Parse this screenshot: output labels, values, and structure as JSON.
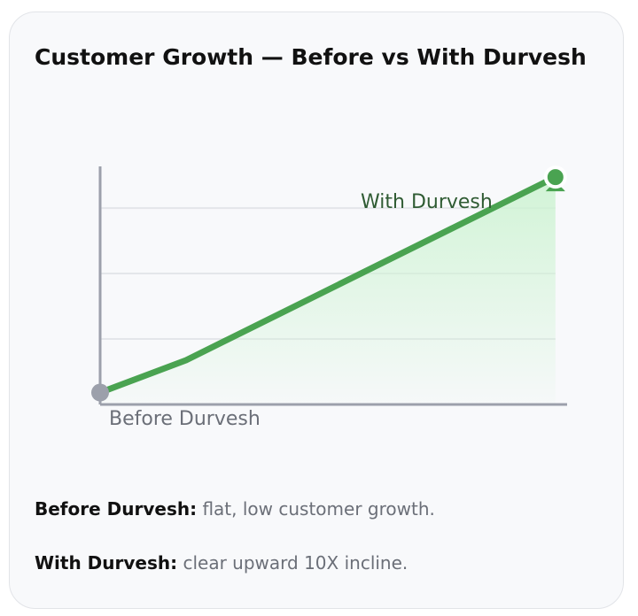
{
  "title": "Customer Growth — Before vs With Durvesh",
  "chart_data": {
    "type": "area",
    "title": "Customer Growth — Before vs With Durvesh",
    "xlim": [
      0,
      100
    ],
    "ylim": [
      0,
      100
    ],
    "grid": true,
    "gridlines_y": [
      27.5,
      55,
      82.5
    ],
    "points": [
      {
        "x": 0,
        "y": 5
      },
      {
        "x": 18.4,
        "y": 18.6
      },
      {
        "x": 97.5,
        "y": 95.5
      }
    ],
    "annotations": [
      {
        "text": "Before Durvesh",
        "at": "start"
      },
      {
        "text": "With Durvesh",
        "at": "end"
      }
    ],
    "colors": {
      "line": "#4aa351",
      "fill": "#cdf3d2",
      "start_marker": "#9ca0ab",
      "axis": "#9ca0ab",
      "grid": "#e4e6ea",
      "end_label": "#2f5b33",
      "start_label": "#6b6f78"
    },
    "end_marker_icon": "user-icon"
  },
  "notes": [
    {
      "label": "Before Durvesh:",
      "text": " flat, low customer growth."
    },
    {
      "label": "With Durvesh:",
      "text": " clear upward 10X incline."
    }
  ]
}
